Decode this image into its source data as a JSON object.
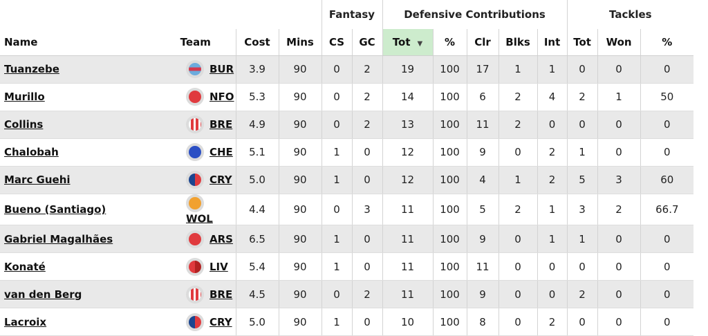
{
  "groups": {
    "fantasy": "Fantasy",
    "defensive": "Defensive Contributions",
    "tackles": "Tackles"
  },
  "columns": {
    "name": "Name",
    "team": "Team",
    "cost": "Cost",
    "mins": "Mins",
    "cs": "CS",
    "gc": "GC",
    "dc_tot": "Tot",
    "dc_pct": "%",
    "clr": "Clr",
    "blks": "Blks",
    "int": "Int",
    "tk_tot": "Tot",
    "tk_won": "Won",
    "tk_pct": "%"
  },
  "sort_indicator": "▼",
  "badge_colors": {
    "BUR": [
      "#6cabdd",
      "#d4384e"
    ],
    "NFO": [
      "#e03a3e"
    ],
    "BRE": [
      "#e03a3e",
      "#ffffff"
    ],
    "CHE": [
      "#2b4fc4"
    ],
    "CRY": [
      "#1b458f",
      "#e03a3e"
    ],
    "WOL": [
      "#f1a130"
    ],
    "ARS": [
      "#e03a3e"
    ],
    "LIV": [
      "#e03a3e",
      "#b22222"
    ]
  },
  "rows": [
    {
      "name": "Tuanzebe",
      "team": "BUR",
      "cost": "3.9",
      "mins": "90",
      "cs": "0",
      "gc": "2",
      "dc_tot": "19",
      "dc_pct": "100",
      "clr": "17",
      "blks": "1",
      "int": "1",
      "tk_tot": "0",
      "tk_won": "0",
      "tk_pct": "0"
    },
    {
      "name": "Murillo",
      "team": "NFO",
      "cost": "5.3",
      "mins": "90",
      "cs": "0",
      "gc": "2",
      "dc_tot": "14",
      "dc_pct": "100",
      "clr": "6",
      "blks": "2",
      "int": "4",
      "tk_tot": "2",
      "tk_won": "1",
      "tk_pct": "50"
    },
    {
      "name": "Collins",
      "team": "BRE",
      "cost": "4.9",
      "mins": "90",
      "cs": "0",
      "gc": "2",
      "dc_tot": "13",
      "dc_pct": "100",
      "clr": "11",
      "blks": "2",
      "int": "0",
      "tk_tot": "0",
      "tk_won": "0",
      "tk_pct": "0"
    },
    {
      "name": "Chalobah",
      "team": "CHE",
      "cost": "5.1",
      "mins": "90",
      "cs": "1",
      "gc": "0",
      "dc_tot": "12",
      "dc_pct": "100",
      "clr": "9",
      "blks": "0",
      "int": "2",
      "tk_tot": "1",
      "tk_won": "0",
      "tk_pct": "0"
    },
    {
      "name": "Marc Guehi",
      "team": "CRY",
      "cost": "5.0",
      "mins": "90",
      "cs": "1",
      "gc": "0",
      "dc_tot": "12",
      "dc_pct": "100",
      "clr": "4",
      "blks": "1",
      "int": "2",
      "tk_tot": "5",
      "tk_won": "3",
      "tk_pct": "60"
    },
    {
      "name": "Bueno (Santiago)",
      "team": "WOL",
      "cost": "4.4",
      "mins": "90",
      "cs": "0",
      "gc": "3",
      "dc_tot": "11",
      "dc_pct": "100",
      "clr": "5",
      "blks": "2",
      "int": "1",
      "tk_tot": "3",
      "tk_won": "2",
      "tk_pct": "66.7"
    },
    {
      "name": "Gabriel Magalhães",
      "team": "ARS",
      "cost": "6.5",
      "mins": "90",
      "cs": "1",
      "gc": "0",
      "dc_tot": "11",
      "dc_pct": "100",
      "clr": "9",
      "blks": "0",
      "int": "1",
      "tk_tot": "1",
      "tk_won": "0",
      "tk_pct": "0"
    },
    {
      "name": "Konaté",
      "team": "LIV",
      "cost": "5.4",
      "mins": "90",
      "cs": "1",
      "gc": "0",
      "dc_tot": "11",
      "dc_pct": "100",
      "clr": "11",
      "blks": "0",
      "int": "0",
      "tk_tot": "0",
      "tk_won": "0",
      "tk_pct": "0"
    },
    {
      "name": "van den Berg",
      "team": "BRE",
      "cost": "4.5",
      "mins": "90",
      "cs": "0",
      "gc": "2",
      "dc_tot": "11",
      "dc_pct": "100",
      "clr": "9",
      "blks": "0",
      "int": "0",
      "tk_tot": "2",
      "tk_won": "0",
      "tk_pct": "0"
    },
    {
      "name": "Lacroix",
      "team": "CRY",
      "cost": "5.0",
      "mins": "90",
      "cs": "1",
      "gc": "0",
      "dc_tot": "10",
      "dc_pct": "100",
      "clr": "8",
      "blks": "0",
      "int": "2",
      "tk_tot": "0",
      "tk_won": "0",
      "tk_pct": "0"
    }
  ]
}
